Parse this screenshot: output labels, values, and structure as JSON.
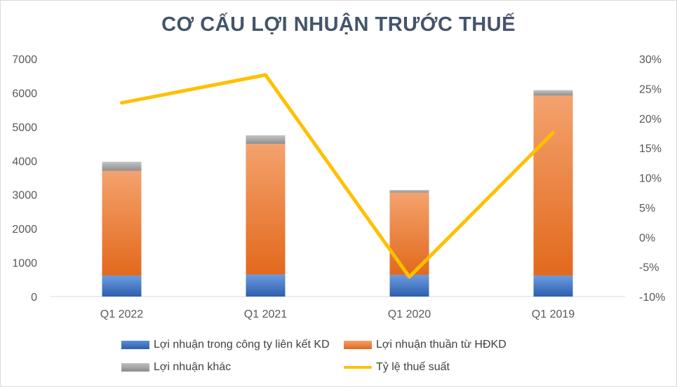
{
  "chart_data": {
    "type": "bar",
    "stacked": true,
    "title": "CƠ CẤU LỢI NHUẬN TRƯỚC THUẾ",
    "categories": [
      "Q1 2022",
      "Q1 2021",
      "Q1 2020",
      "Q1 2019"
    ],
    "series": [
      {
        "name": "Lợi nhuận trong công ty liên kết KD",
        "type": "bar",
        "axis": "left",
        "color": "#4472c4",
        "values": [
          620,
          650,
          640,
          620
        ]
      },
      {
        "name": "Lợi nhuận thuần từ HĐKD",
        "type": "bar",
        "axis": "left",
        "color": "#ed7d31",
        "values": [
          3080,
          3850,
          2420,
          5300
        ]
      },
      {
        "name": "Lợi nhuận khác",
        "type": "bar",
        "axis": "left",
        "color": "#a5a5a5",
        "values": [
          270,
          250,
          80,
          160
        ]
      },
      {
        "name": "Tỷ lệ thuế suất",
        "type": "line",
        "axis": "right",
        "color": "#ffc000",
        "values": [
          22.6,
          27.3,
          -6.7,
          17.6
        ]
      }
    ],
    "ylim": [
      0,
      7000
    ],
    "yticks": [
      "0",
      "1000",
      "2000",
      "3000",
      "4000",
      "5000",
      "6000",
      "7000"
    ],
    "y2lim": [
      -10,
      30
    ],
    "y2ticks": [
      "-10%",
      "-5%",
      "0%",
      "5%",
      "10%",
      "15%",
      "20%",
      "25%",
      "30%"
    ],
    "grid": false,
    "legend_position": "bottom"
  }
}
